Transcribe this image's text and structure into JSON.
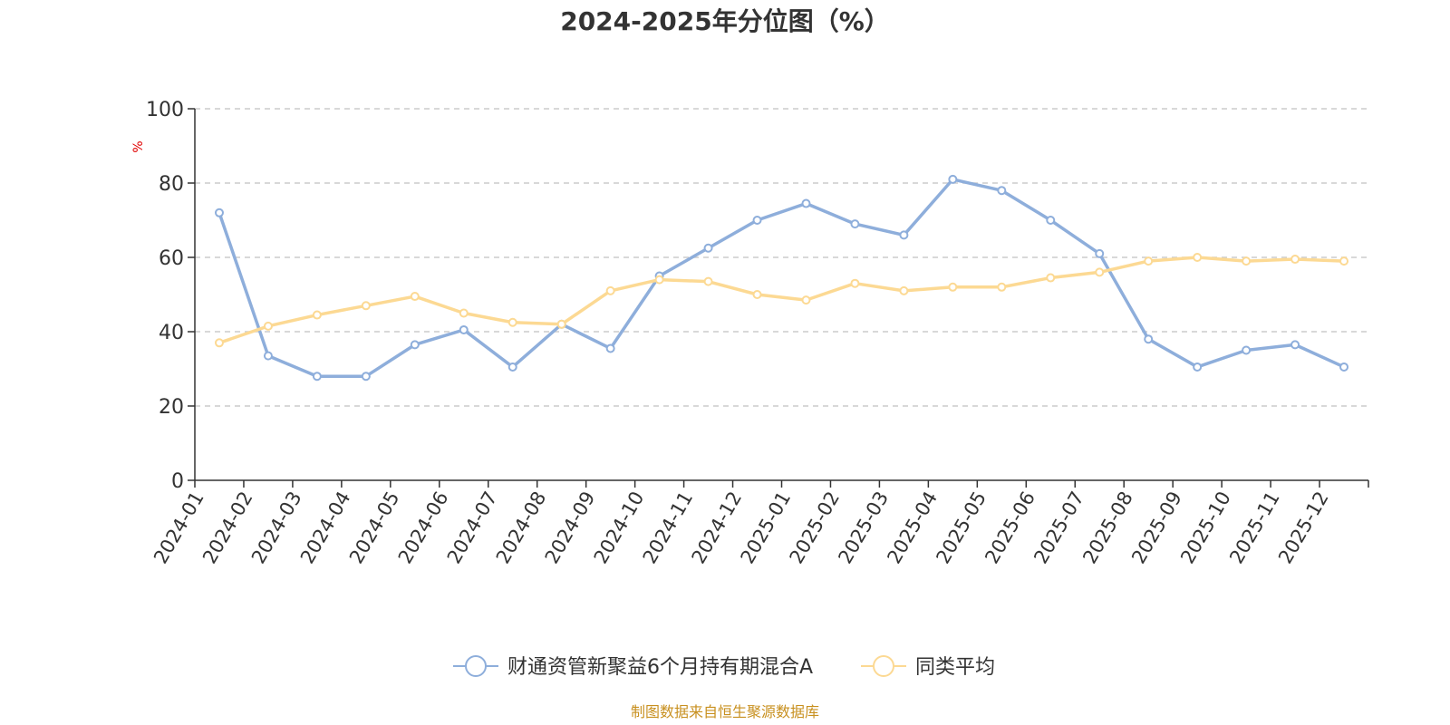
{
  "chart_data": {
    "type": "line",
    "title": "2024-2025年分位图（%）",
    "ylabel": "%",
    "xlabel": "",
    "ylim": [
      0,
      100
    ],
    "yticks": [
      0,
      20,
      40,
      60,
      80,
      100
    ],
    "grid": true,
    "legend_position": "bottom",
    "categories": [
      "2024-01",
      "2024-02",
      "2024-03",
      "2024-04",
      "2024-05",
      "2024-06",
      "2024-07",
      "2024-08",
      "2024-09",
      "2024-10",
      "2024-11",
      "2024-12",
      "2025-01",
      "2025-02",
      "2025-03",
      "2025-04",
      "2025-05",
      "2025-06",
      "2025-07",
      "2025-08",
      "2025-09",
      "2025-10",
      "2025-11",
      "2025-12"
    ],
    "series": [
      {
        "name": "财通资管新聚益6个月持有期混合A",
        "color": "#8eaedb",
        "values": [
          72,
          33.5,
          28,
          28,
          36.5,
          40.5,
          30.5,
          42,
          35.5,
          55,
          62.5,
          70,
          74.5,
          69,
          66,
          81,
          78,
          70,
          61,
          38,
          30.5,
          35,
          36.5,
          30.5
        ]
      },
      {
        "name": "同类平均",
        "color": "#fcd993",
        "values": [
          37,
          41.5,
          44.5,
          47,
          49.5,
          45,
          42.5,
          42,
          51,
          54,
          53.5,
          50,
          48.5,
          53,
          51,
          52,
          52,
          54.5,
          56,
          59,
          60,
          59,
          59.5,
          59
        ]
      }
    ]
  },
  "footer": {
    "source": "制图数据来自恒生聚源数据库",
    "source_color": "#c8901f"
  },
  "colors": {
    "unit": "#e00000",
    "axis": "#333333",
    "grid": "#cccccc"
  }
}
